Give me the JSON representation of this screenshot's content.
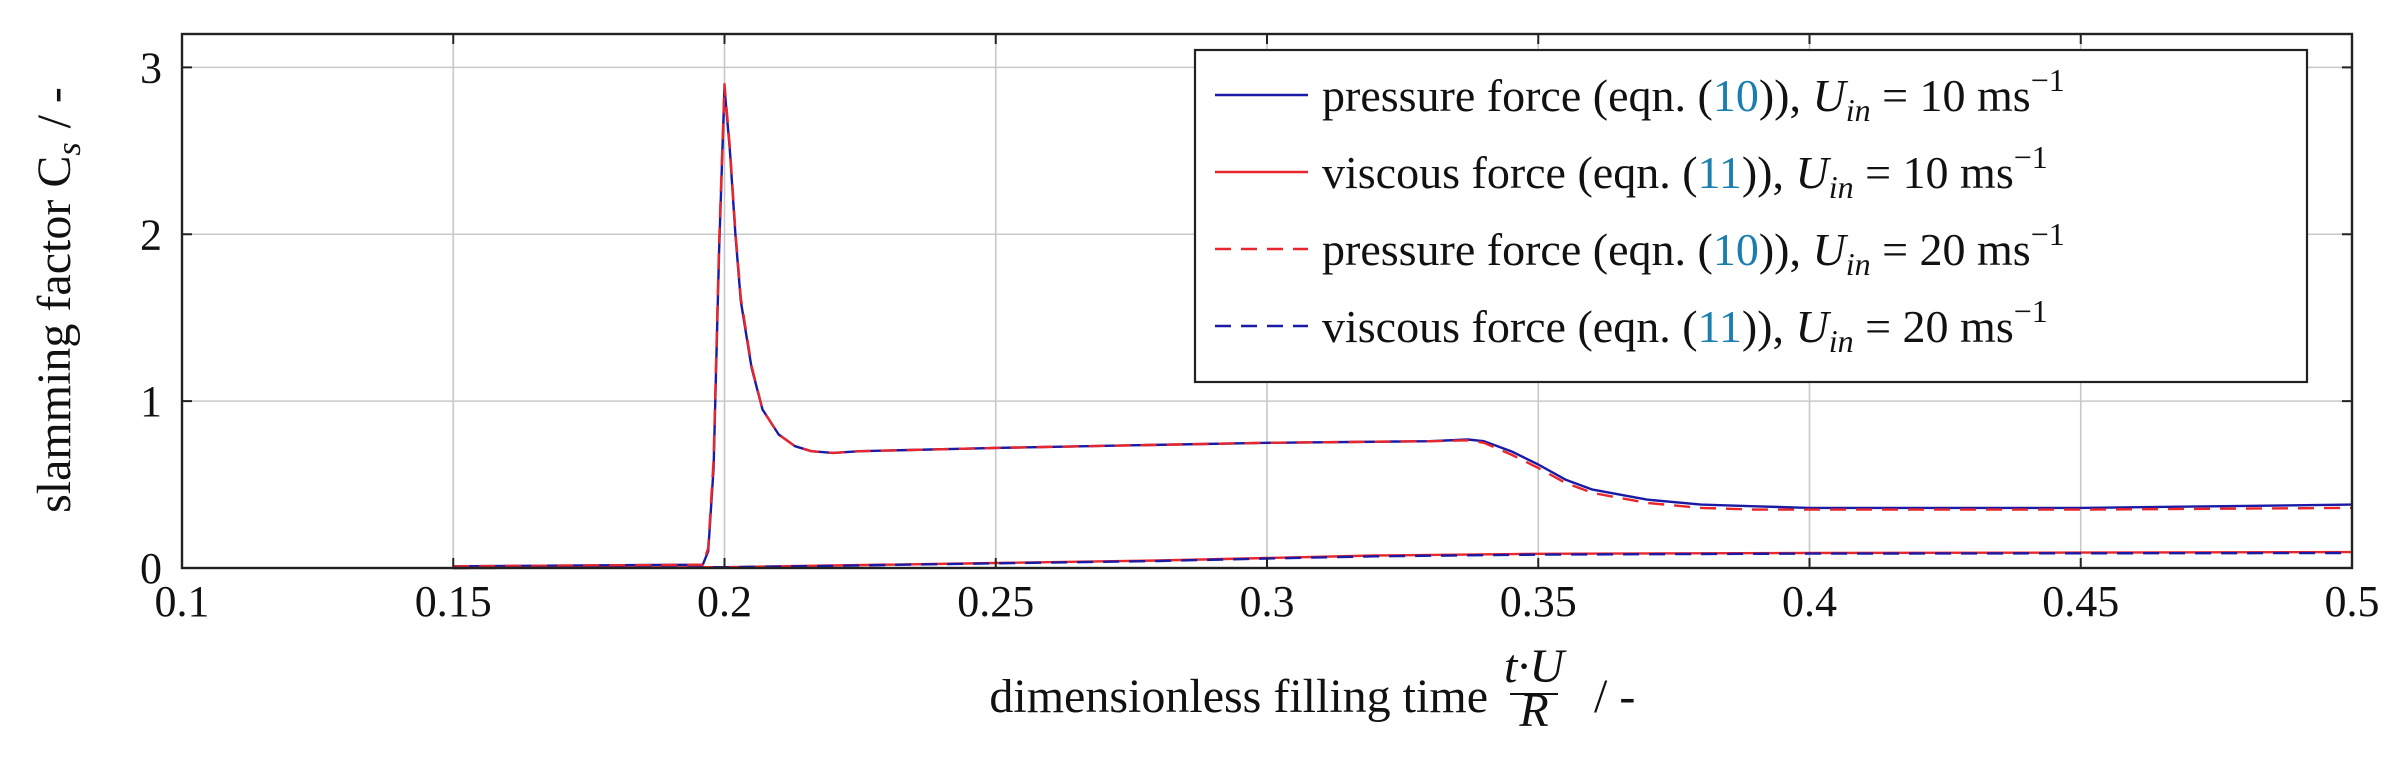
{
  "chart_data": {
    "type": "line",
    "title": "",
    "xlabel": "dimensionless filling time",
    "xlabel_fraction": {
      "numerator": "t·U",
      "denominator": "R"
    },
    "xlabel_unit": "/ -",
    "ylabel": "slamming factor C",
    "ylabel_subscript": "s",
    "ylabel_unit": "/ -",
    "xlim": [
      0.1,
      0.5
    ],
    "ylim": [
      0,
      3.2
    ],
    "xticks": [
      0.1,
      0.15,
      0.2,
      0.25,
      0.3,
      0.35,
      0.4,
      0.45,
      0.5
    ],
    "xtick_labels": [
      "0.1",
      "0.15",
      "0.2",
      "0.25",
      "0.3",
      "0.35",
      "0.4",
      "0.45",
      "0.5"
    ],
    "yticks": [
      0,
      1,
      2,
      3
    ],
    "ytick_labels": [
      "0",
      "1",
      "2",
      "3"
    ],
    "grid": true,
    "legend_position": "top-right",
    "series": [
      {
        "name": "pressure force (eqn. (10)), U_in = 10 ms^-1",
        "legend": {
          "pre": "pressure force (eqn. (",
          "ref": "10",
          "post": ")),",
          "var": "U",
          "sub": "in",
          "eq": "= 10 ms",
          "sup": "−1"
        },
        "color": "#1a1aa6",
        "dash": "solid",
        "x": [
          0.15,
          0.196,
          0.197,
          0.198,
          0.199,
          0.2,
          0.201,
          0.202,
          0.203,
          0.205,
          0.207,
          0.21,
          0.213,
          0.216,
          0.22,
          0.225,
          0.25,
          0.3,
          0.33,
          0.337,
          0.34,
          0.345,
          0.35,
          0.355,
          0.36,
          0.37,
          0.38,
          0.39,
          0.4,
          0.45,
          0.5
        ],
        "y": [
          0.01,
          0.02,
          0.1,
          0.6,
          1.9,
          2.88,
          2.5,
          2.0,
          1.6,
          1.2,
          0.95,
          0.8,
          0.73,
          0.7,
          0.69,
          0.7,
          0.72,
          0.75,
          0.76,
          0.77,
          0.76,
          0.7,
          0.62,
          0.53,
          0.47,
          0.41,
          0.38,
          0.37,
          0.36,
          0.36,
          0.38
        ]
      },
      {
        "name": "viscous force (eqn. (11)), U_in = 10 ms^-1",
        "legend": {
          "pre": "viscous force (eqn. (",
          "ref": "11",
          "post": ")),",
          "var": "U",
          "sub": "in",
          "eq": "= 10 ms",
          "sup": "−1"
        },
        "color": "#e8262b",
        "dash": "solid",
        "x": [
          0.15,
          0.2,
          0.22,
          0.25,
          0.28,
          0.3,
          0.32,
          0.35,
          0.4,
          0.45,
          0.5
        ],
        "y": [
          0.0,
          0.005,
          0.015,
          0.03,
          0.045,
          0.06,
          0.075,
          0.085,
          0.09,
          0.092,
          0.095
        ]
      },
      {
        "name": "pressure force (eqn. (10)), U_in = 20 ms^-1",
        "legend": {
          "pre": "pressure force (eqn. (",
          "ref": "10",
          "post": ")),",
          "var": "U",
          "sub": "in",
          "eq": "= 20 ms",
          "sup": "−1"
        },
        "color": "#e8262b",
        "dash": "dashed",
        "x": [
          0.15,
          0.196,
          0.197,
          0.198,
          0.199,
          0.2,
          0.201,
          0.202,
          0.203,
          0.205,
          0.207,
          0.21,
          0.213,
          0.216,
          0.22,
          0.225,
          0.25,
          0.3,
          0.33,
          0.337,
          0.34,
          0.345,
          0.35,
          0.355,
          0.36,
          0.37,
          0.38,
          0.39,
          0.4,
          0.45,
          0.5
        ],
        "y": [
          0.01,
          0.02,
          0.12,
          0.65,
          1.95,
          2.9,
          2.52,
          2.02,
          1.62,
          1.21,
          0.95,
          0.8,
          0.73,
          0.7,
          0.69,
          0.7,
          0.72,
          0.75,
          0.76,
          0.765,
          0.75,
          0.68,
          0.6,
          0.51,
          0.45,
          0.39,
          0.36,
          0.35,
          0.35,
          0.35,
          0.36
        ]
      },
      {
        "name": "viscous force (eqn. (11)), U_in = 20 ms^-1",
        "legend": {
          "pre": "viscous force (eqn. (",
          "ref": "11",
          "post": ")),",
          "var": "U",
          "sub": "in",
          "eq": "= 20 ms",
          "sup": "−1"
        },
        "color": "#1a1aa6",
        "dash": "dashed",
        "x": [
          0.15,
          0.2,
          0.22,
          0.25,
          0.28,
          0.3,
          0.32,
          0.35,
          0.4,
          0.45,
          0.5
        ],
        "y": [
          0.0,
          0.004,
          0.013,
          0.028,
          0.042,
          0.057,
          0.07,
          0.08,
          0.086,
          0.088,
          0.09
        ]
      }
    ]
  }
}
